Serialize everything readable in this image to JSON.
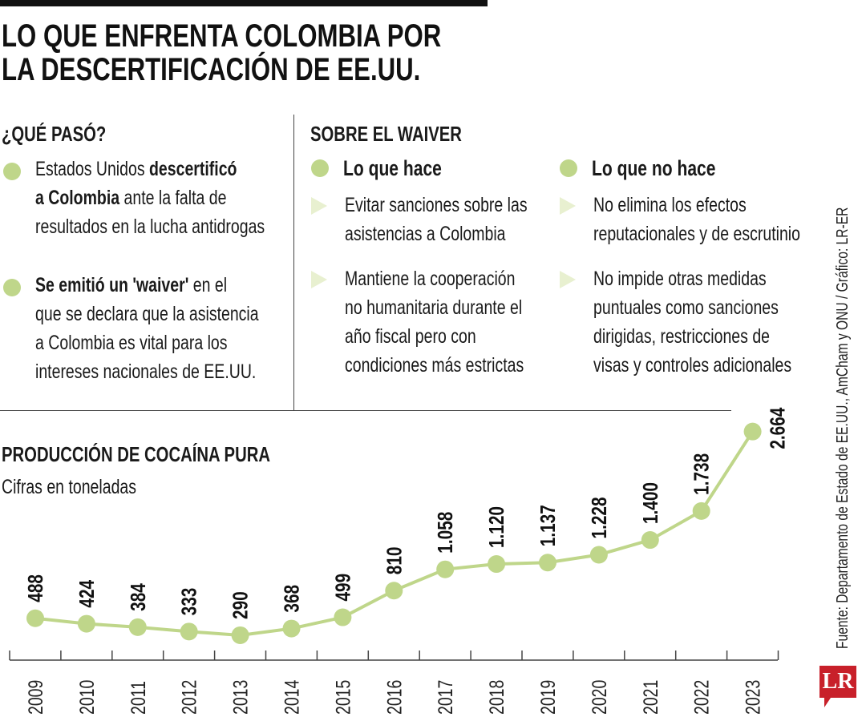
{
  "title": [
    "LO QUE ENFRENTA COLOMBIA POR",
    "LA DESCERTIFICACIÓN DE EE.UU."
  ],
  "que_paso": {
    "heading": "¿QUÉ PASÓ?",
    "items": [
      {
        "lines": [
          [
            {
              "t": "Estados Unidos ",
              "b": false
            },
            {
              "t": "descertificó",
              "b": true
            }
          ],
          [
            {
              "t": "a Colombia",
              "b": true
            },
            {
              "t": " ante la falta de",
              "b": false
            }
          ],
          [
            {
              "t": "resultados en la lucha antidrogas",
              "b": false
            }
          ]
        ]
      },
      {
        "lines": [
          [
            {
              "t": "Se emitió un 'waiver'",
              "b": true
            },
            {
              "t": " en el",
              "b": false
            }
          ],
          [
            {
              "t": "que se declara que la asistencia",
              "b": false
            }
          ],
          [
            {
              "t": "a Colombia es vital para los",
              "b": false
            }
          ],
          [
            {
              "t": "intereses nacionales de EE.UU.",
              "b": false
            }
          ]
        ]
      }
    ]
  },
  "waiver": {
    "heading": "SOBRE EL WAIVER",
    "columns": [
      {
        "heading": "Lo que hace",
        "items": [
          [
            "Evitar sanciones sobre las",
            "asistencias a Colombia"
          ],
          [
            "Mantiene la cooperación",
            "no humanitaria durante el",
            "año fiscal pero con",
            "condiciones más estrictas"
          ]
        ]
      },
      {
        "heading": "Lo que no hace",
        "items": [
          [
            "No elimina los efectos",
            "reputacionales y de escrutinio"
          ],
          [
            "No impide otras medidas",
            "puntuales como sanciones",
            "dirigidas, restricciones de",
            "visas y controles adicionales"
          ]
        ]
      }
    ]
  },
  "source": "Fuente: Departamento de Estado de EE.UU., AmCham y ONU / Gráfico: LR-ER",
  "logo": "LR",
  "colors": {
    "accent": "#bfd68a",
    "logo": "#c8202a"
  },
  "chart_data": {
    "type": "line",
    "title": "PRODUCCIÓN DE COCAÍNA PURA",
    "subtitle": "Cifras en toneladas",
    "categories": [
      "2009",
      "2010",
      "2011",
      "2012",
      "2013",
      "2014",
      "2015",
      "2016",
      "2017",
      "2018",
      "2019",
      "2020",
      "2021",
      "2022",
      "2023"
    ],
    "values": [
      488,
      424,
      384,
      333,
      290,
      368,
      499,
      810,
      1058,
      1120,
      1137,
      1228,
      1400,
      1738,
      2664
    ],
    "labels": [
      "488",
      "424",
      "384",
      "333",
      "290",
      "368",
      "499",
      "810",
      "1.058",
      "1.120",
      "1.137",
      "1.228",
      "1.400",
      "1.738",
      "2.664"
    ],
    "grid": false
  }
}
